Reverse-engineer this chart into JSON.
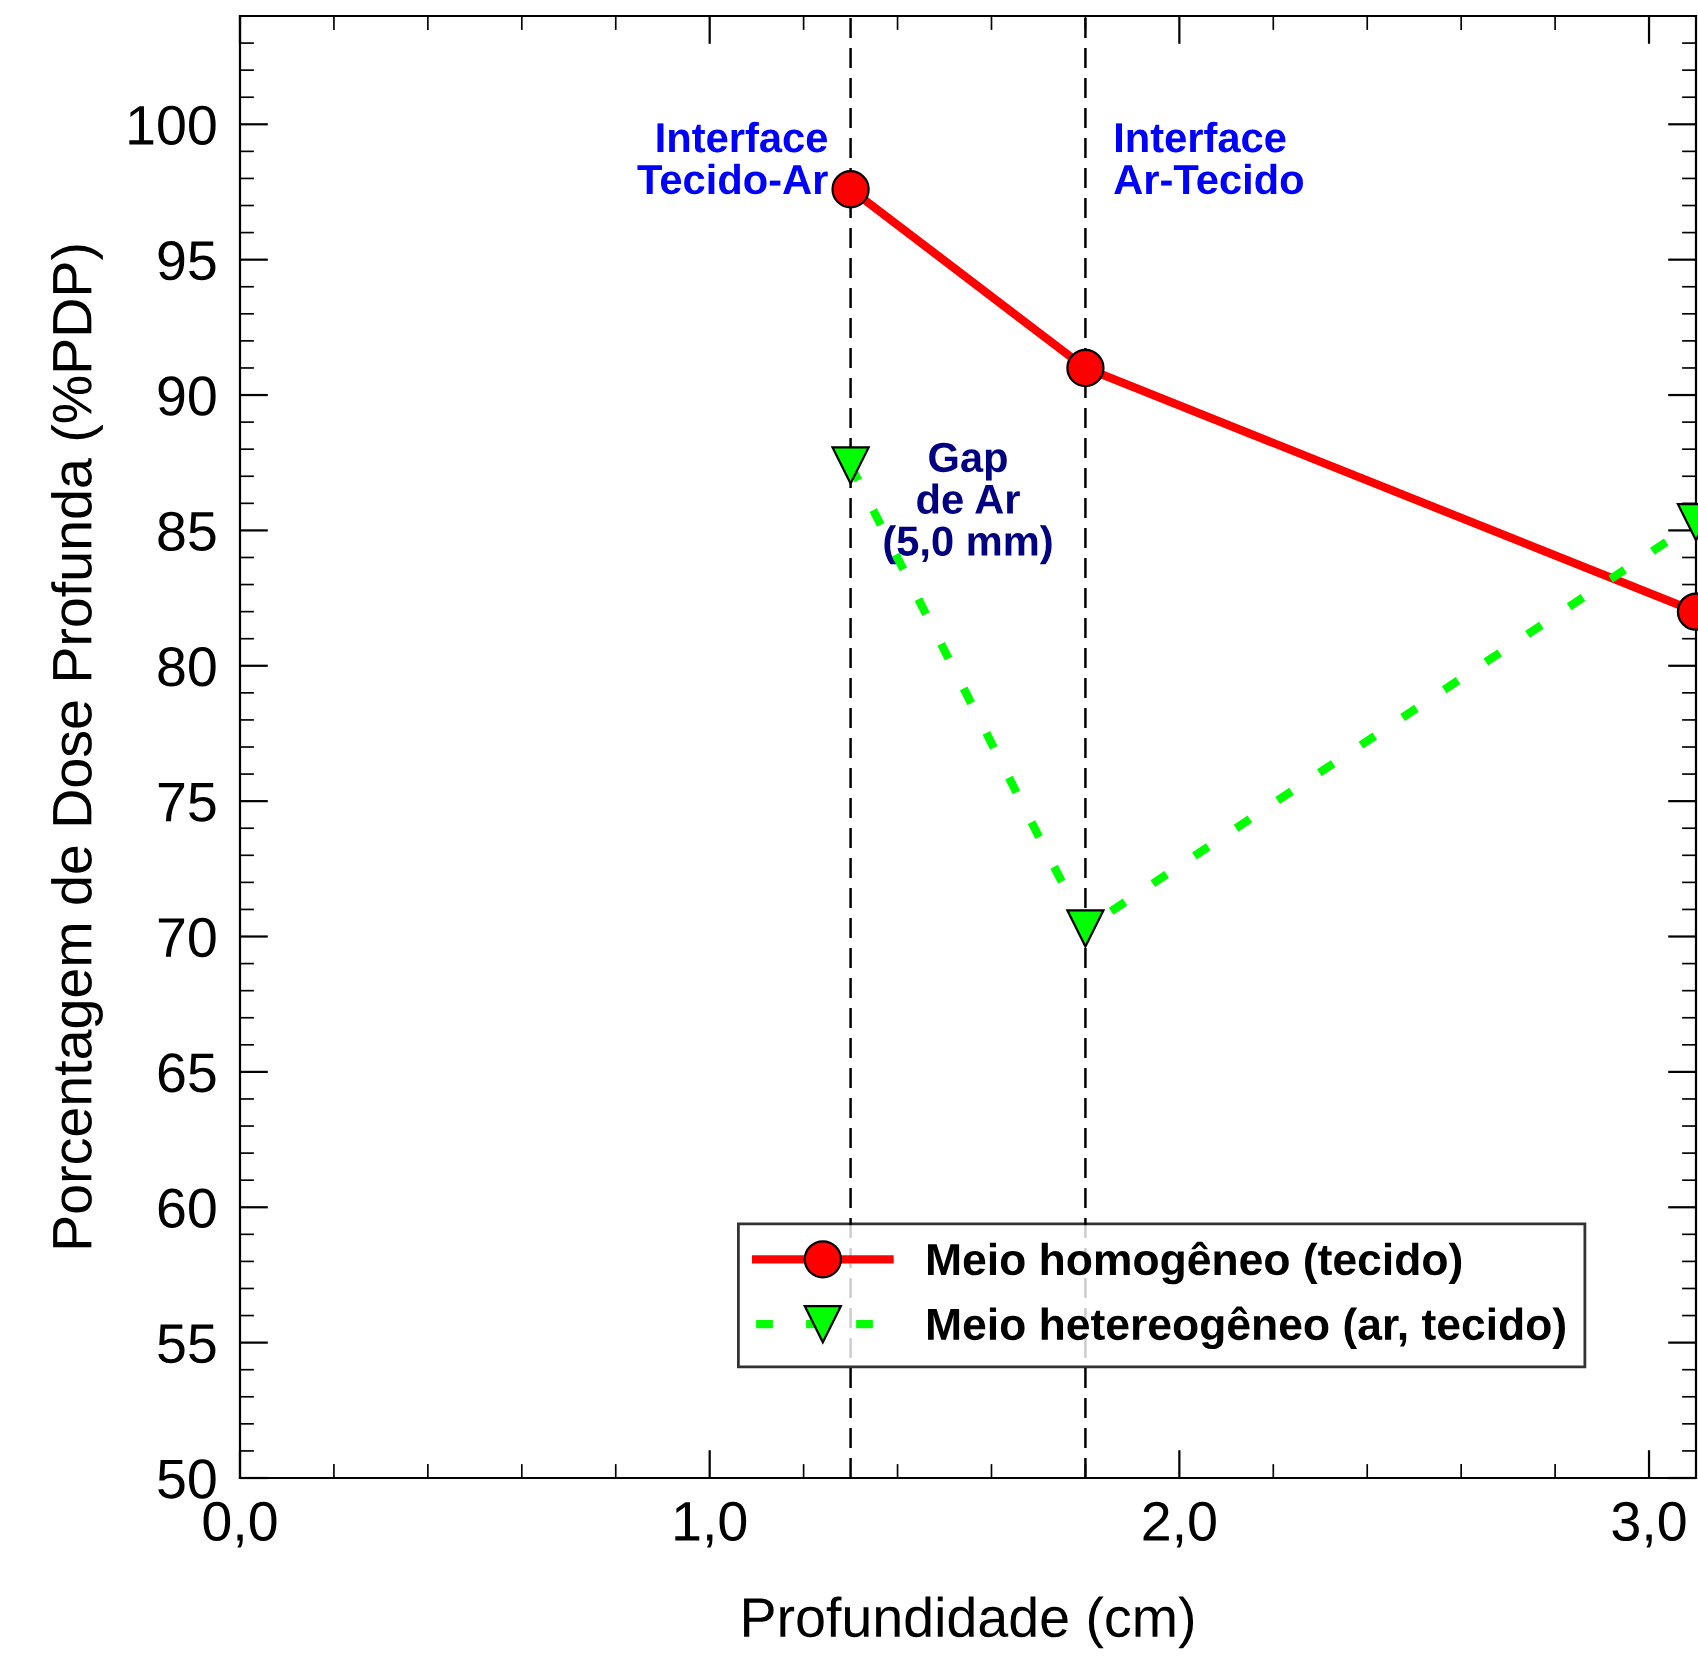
{
  "chart_data": {
    "type": "line",
    "xlabel": "Profundidade (cm)",
    "ylabel": "Porcentagem de Dose Profunda (%PDP)",
    "xlim": [
      0,
      3.1
    ],
    "ylim": [
      50,
      104
    ],
    "xticks": [
      {
        "value": 0,
        "label": "0,0"
      },
      {
        "value": 1,
        "label": "1,0"
      },
      {
        "value": 2,
        "label": "2,0"
      },
      {
        "value": 3,
        "label": "3,0"
      }
    ],
    "yticks": [
      50,
      55,
      60,
      65,
      70,
      75,
      80,
      85,
      90,
      95,
      100
    ],
    "grid": false,
    "legend": "bottom right",
    "series": [
      {
        "name": "Meio homogêneo (tecido)",
        "color": "#ff0000",
        "marker": "circle",
        "line_style": "solid",
        "x": [
          1.3,
          1.8,
          3.1
        ],
        "values": [
          97.6,
          91.0,
          82.0
        ]
      },
      {
        "name": "Meio hetereogêneo (ar, tecido)",
        "color": "#00ff00",
        "marker": "triangle",
        "line_style": "dotted",
        "x": [
          1.3,
          1.8,
          3.1
        ],
        "values": [
          87.4,
          70.3,
          85.3
        ]
      }
    ],
    "ref_lines": [
      {
        "axis": "x",
        "value": 1.3,
        "label": "Interface\nTecido-Ar",
        "color": "#000000",
        "line_style": "dashed"
      },
      {
        "axis": "x",
        "value": 1.8,
        "label": "Interface\nAr-Tecido",
        "color": "#000000",
        "line_style": "dashed"
      }
    ],
    "annotations": [
      "Gap\nde Ar\n(5,0 mm)"
    ]
  }
}
